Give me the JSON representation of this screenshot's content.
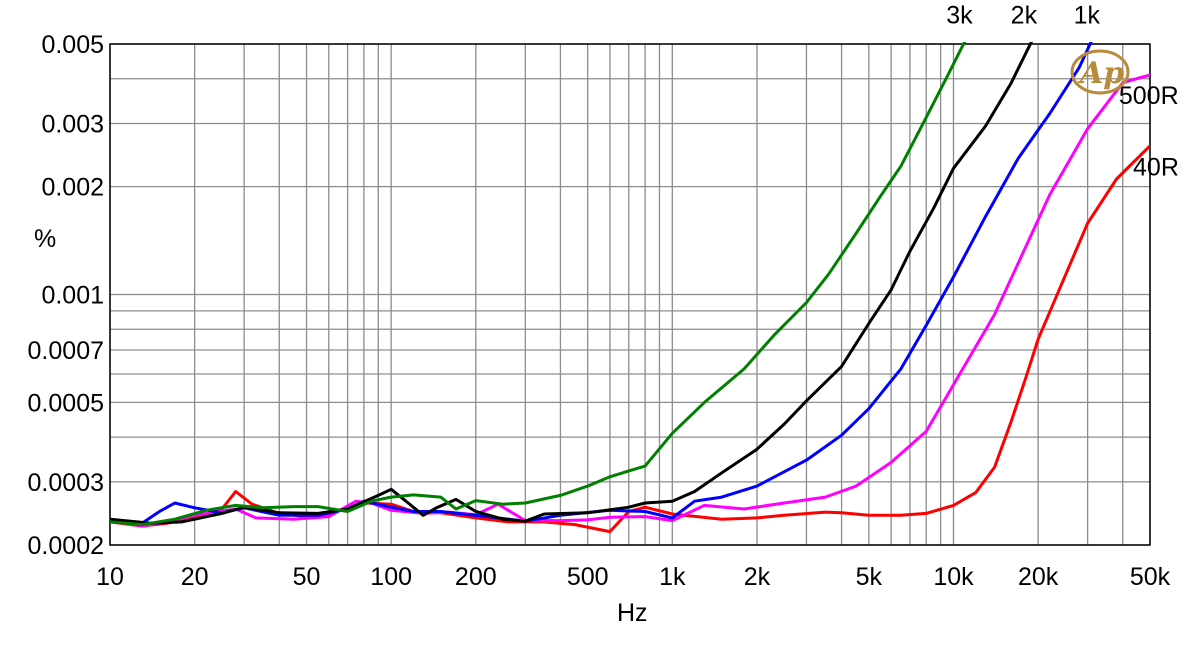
{
  "chart_data": {
    "type": "line",
    "title": "",
    "xlabel": "Hz",
    "ylabel": "%",
    "xscale": "log",
    "yscale": "log",
    "xlim": [
      10,
      50000
    ],
    "ylim": [
      0.0002,
      0.005
    ],
    "grid": true,
    "legend": "labels at line ends",
    "colors": {
      "background": "#ffffff",
      "grid": "#8c8c8c",
      "axis": "#000000"
    },
    "x_ticks": [
      {
        "value": 10,
        "label": "10"
      },
      {
        "value": 20,
        "label": "20"
      },
      {
        "value": 50,
        "label": "50"
      },
      {
        "value": 100,
        "label": "100"
      },
      {
        "value": 200,
        "label": "200"
      },
      {
        "value": 500,
        "label": "500"
      },
      {
        "value": 1000,
        "label": "1k"
      },
      {
        "value": 2000,
        "label": "2k"
      },
      {
        "value": 5000,
        "label": "5k"
      },
      {
        "value": 10000,
        "label": "10k"
      },
      {
        "value": 20000,
        "label": "20k"
      },
      {
        "value": 50000,
        "label": "50k"
      }
    ],
    "y_ticks": [
      {
        "value": 0.0002,
        "label": "0.0002"
      },
      {
        "value": 0.0003,
        "label": "0.0003"
      },
      {
        "value": 0.0005,
        "label": "0.0005"
      },
      {
        "value": 0.0007,
        "label": "0.0007"
      },
      {
        "value": 0.001,
        "label": "0.001"
      },
      {
        "value": 0.002,
        "label": "0.002"
      },
      {
        "value": 0.003,
        "label": "0.003"
      },
      {
        "value": 0.005,
        "label": "0.005"
      }
    ],
    "x_minor_grid": [
      30,
      40,
      60,
      70,
      80,
      90,
      300,
      400,
      600,
      700,
      800,
      900,
      3000,
      4000,
      6000,
      7000,
      8000,
      9000,
      30000,
      40000
    ],
    "y_minor_grid": [
      0.0004,
      0.0006,
      0.0008,
      0.0009,
      0.004
    ],
    "series": [
      {
        "name": "40R",
        "color": "#ff0000",
        "points": [
          [
            10,
            0.000232
          ],
          [
            13,
            0.000226
          ],
          [
            16,
            0.00023
          ],
          [
            20,
            0.000238
          ],
          [
            25,
            0.000252
          ],
          [
            28,
            0.000282
          ],
          [
            32,
            0.00026
          ],
          [
            40,
            0.000245
          ],
          [
            50,
            0.00024
          ],
          [
            60,
            0.000245
          ],
          [
            80,
            0.000262
          ],
          [
            100,
            0.00026
          ],
          [
            120,
            0.000248
          ],
          [
            150,
            0.000246
          ],
          [
            200,
            0.000238
          ],
          [
            260,
            0.000232
          ],
          [
            350,
            0.000232
          ],
          [
            450,
            0.000228
          ],
          [
            600,
            0.000218
          ],
          [
            700,
            0.000248
          ],
          [
            800,
            0.000255
          ],
          [
            1000,
            0.000244
          ],
          [
            1500,
            0.000236
          ],
          [
            2000,
            0.000238
          ],
          [
            2500,
            0.000242
          ],
          [
            3500,
            0.000247
          ],
          [
            4000,
            0.000246
          ],
          [
            5000,
            0.000242
          ],
          [
            6500,
            0.000242
          ],
          [
            8000,
            0.000245
          ],
          [
            10000,
            0.000258
          ],
          [
            12000,
            0.00028
          ],
          [
            14000,
            0.00033
          ],
          [
            16000,
            0.00044
          ],
          [
            18000,
            0.00058
          ],
          [
            20000,
            0.00075
          ],
          [
            24000,
            0.00105
          ],
          [
            30000,
            0.00158
          ],
          [
            38000,
            0.0021
          ],
          [
            50000,
            0.0026
          ]
        ]
      },
      {
        "name": "500R",
        "color": "#ff00ff",
        "points": [
          [
            10,
            0.000234
          ],
          [
            13,
            0.000226
          ],
          [
            16,
            0.000232
          ],
          [
            20,
            0.000242
          ],
          [
            28,
            0.000252
          ],
          [
            33,
            0.000238
          ],
          [
            45,
            0.000236
          ],
          [
            60,
            0.00024
          ],
          [
            75,
            0.000265
          ],
          [
            85,
            0.000262
          ],
          [
            100,
            0.00025
          ],
          [
            130,
            0.000245
          ],
          [
            160,
            0.000247
          ],
          [
            200,
            0.000243
          ],
          [
            240,
            0.00026
          ],
          [
            300,
            0.000234
          ],
          [
            400,
            0.000234
          ],
          [
            500,
            0.000235
          ],
          [
            600,
            0.000239
          ],
          [
            800,
            0.00024
          ],
          [
            1000,
            0.000234
          ],
          [
            1300,
            0.000258
          ],
          [
            1800,
            0.000252
          ],
          [
            2500,
            0.000262
          ],
          [
            3500,
            0.000272
          ],
          [
            4500,
            0.000292
          ],
          [
            6000,
            0.00034
          ],
          [
            8000,
            0.000415
          ],
          [
            10000,
            0.00056
          ],
          [
            14000,
            0.00088
          ],
          [
            18000,
            0.00135
          ],
          [
            22000,
            0.0019
          ],
          [
            30000,
            0.0029
          ],
          [
            40000,
            0.0039
          ],
          [
            50000,
            0.0041
          ]
        ]
      },
      {
        "name": "1k",
        "color": "#0000ff",
        "points": [
          [
            10,
            0.000236
          ],
          [
            13,
            0.00023
          ],
          [
            15,
            0.000248
          ],
          [
            17,
            0.000262
          ],
          [
            20,
            0.000254
          ],
          [
            25,
            0.000246
          ],
          [
            30,
            0.000254
          ],
          [
            40,
            0.000242
          ],
          [
            55,
            0.000242
          ],
          [
            70,
            0.000252
          ],
          [
            80,
            0.000265
          ],
          [
            100,
            0.000255
          ],
          [
            120,
            0.000248
          ],
          [
            150,
            0.000248
          ],
          [
            180,
            0.000244
          ],
          [
            220,
            0.00024
          ],
          [
            300,
            0.000233
          ],
          [
            400,
            0.000242
          ],
          [
            600,
            0.00025
          ],
          [
            800,
            0.000248
          ],
          [
            1000,
            0.000238
          ],
          [
            1200,
            0.000265
          ],
          [
            1500,
            0.000272
          ],
          [
            2000,
            0.000292
          ],
          [
            3000,
            0.000345
          ],
          [
            4000,
            0.000405
          ],
          [
            5000,
            0.00048
          ],
          [
            6500,
            0.00062
          ],
          [
            8000,
            0.00082
          ],
          [
            10000,
            0.00112
          ],
          [
            13000,
            0.00165
          ],
          [
            17000,
            0.0024
          ],
          [
            22000,
            0.0032
          ],
          [
            28000,
            0.0043
          ],
          [
            31000,
            0.0051
          ]
        ]
      },
      {
        "name": "2k",
        "color": "#000000",
        "points": [
          [
            10,
            0.000236
          ],
          [
            14,
            0.00023
          ],
          [
            18,
            0.000232
          ],
          [
            25,
            0.000245
          ],
          [
            30,
            0.000255
          ],
          [
            40,
            0.000246
          ],
          [
            55,
            0.000245
          ],
          [
            70,
            0.000252
          ],
          [
            90,
            0.000275
          ],
          [
            100,
            0.000286
          ],
          [
            115,
            0.000262
          ],
          [
            130,
            0.000242
          ],
          [
            145,
            0.000254
          ],
          [
            170,
            0.000268
          ],
          [
            200,
            0.000248
          ],
          [
            250,
            0.000236
          ],
          [
            300,
            0.000233
          ],
          [
            350,
            0.000244
          ],
          [
            500,
            0.000246
          ],
          [
            700,
            0.000255
          ],
          [
            800,
            0.000262
          ],
          [
            1000,
            0.000265
          ],
          [
            1200,
            0.000282
          ],
          [
            1500,
            0.000318
          ],
          [
            2000,
            0.00037
          ],
          [
            2500,
            0.000435
          ],
          [
            3000,
            0.000505
          ],
          [
            4000,
            0.00063
          ],
          [
            5000,
            0.00083
          ],
          [
            6000,
            0.00103
          ],
          [
            7000,
            0.00132
          ],
          [
            8500,
            0.00174
          ],
          [
            10000,
            0.00225
          ],
          [
            13000,
            0.00295
          ],
          [
            16000,
            0.00388
          ],
          [
            19000,
            0.0051
          ]
        ]
      },
      {
        "name": "3k",
        "color": "#008000",
        "points": [
          [
            10,
            0.000232
          ],
          [
            13,
            0.000228
          ],
          [
            17,
            0.000236
          ],
          [
            22,
            0.00025
          ],
          [
            28,
            0.000258
          ],
          [
            35,
            0.000254
          ],
          [
            45,
            0.000256
          ],
          [
            55,
            0.000256
          ],
          [
            70,
            0.000248
          ],
          [
            85,
            0.000265
          ],
          [
            100,
            0.000272
          ],
          [
            120,
            0.000276
          ],
          [
            150,
            0.000272
          ],
          [
            170,
            0.000252
          ],
          [
            200,
            0.000266
          ],
          [
            250,
            0.00026
          ],
          [
            300,
            0.000262
          ],
          [
            400,
            0.000275
          ],
          [
            500,
            0.000292
          ],
          [
            600,
            0.00031
          ],
          [
            700,
            0.000322
          ],
          [
            800,
            0.000332
          ],
          [
            1000,
            0.00041
          ],
          [
            1300,
            0.0005
          ],
          [
            1800,
            0.00062
          ],
          [
            2300,
            0.00077
          ],
          [
            3000,
            0.00095
          ],
          [
            3600,
            0.00114
          ],
          [
            4500,
            0.00148
          ],
          [
            5500,
            0.00188
          ],
          [
            6500,
            0.00228
          ],
          [
            8000,
            0.00312
          ],
          [
            9500,
            0.00406
          ],
          [
            11000,
            0.0051
          ]
        ]
      }
    ],
    "annotations": [
      {
        "text": "3k",
        "x": 10500,
        "y": 0.0057
      },
      {
        "text": "2k",
        "x": 17800,
        "y": 0.0057
      },
      {
        "text": "1k",
        "x": 29800,
        "y": 0.0057
      },
      {
        "text": "500R",
        "x": 49500,
        "y": 0.0034
      },
      {
        "text": "40R",
        "x": 52500,
        "y": 0.00215
      }
    ],
    "logo": "Ap"
  }
}
